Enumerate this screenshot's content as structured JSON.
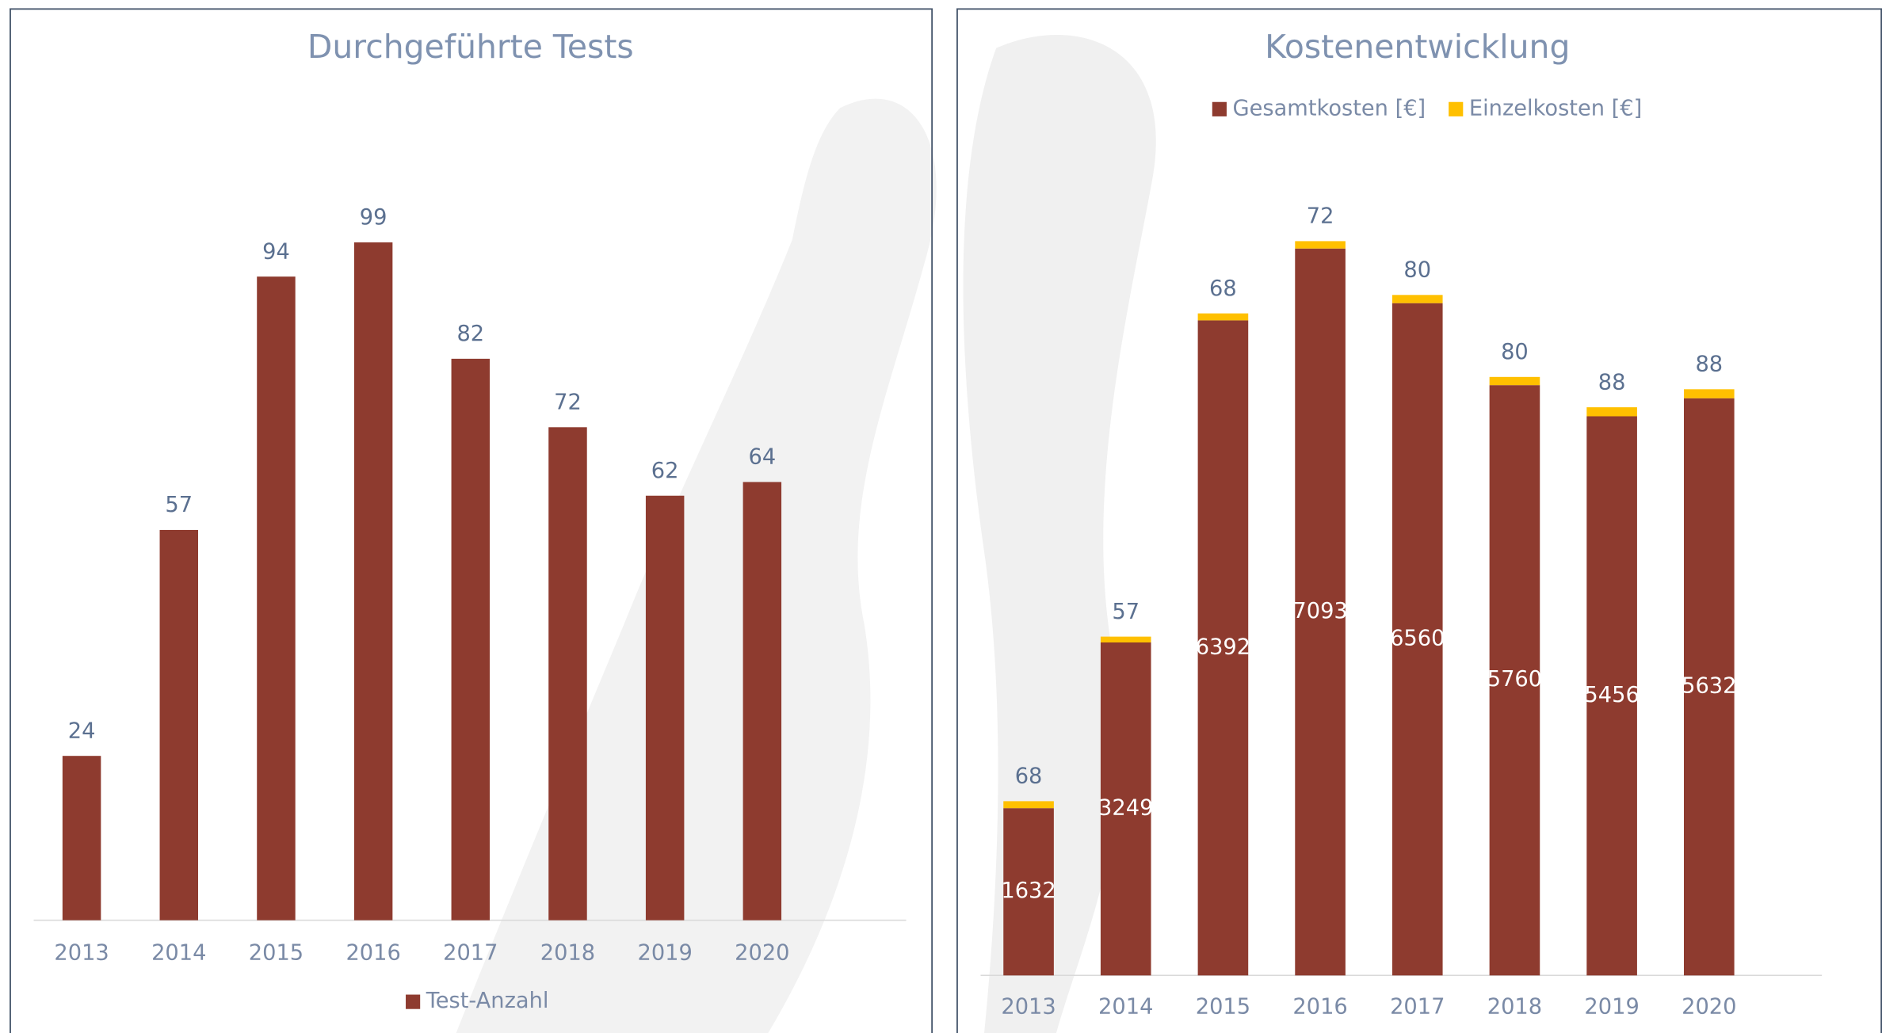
{
  "chart_data": [
    {
      "type": "bar",
      "title": "Durchgeführte Tests",
      "categories": [
        "2013",
        "2014",
        "2015",
        "2016",
        "2017",
        "2018",
        "2019",
        "2020"
      ],
      "series": [
        {
          "name": "Test-Anzahl",
          "color": "#8e3b2f",
          "values": [
            24,
            57,
            94,
            99,
            82,
            72,
            62,
            64
          ]
        }
      ]
    },
    {
      "type": "stacked_bar",
      "title": "Kostenentwicklung",
      "categories": [
        "2013",
        "2014",
        "2015",
        "2016",
        "2017",
        "2018",
        "2019",
        "2020"
      ],
      "series": [
        {
          "name": "Gesamtkosten [€]",
          "color": "#8e3b2f",
          "values": [
            1632,
            3249,
            6392,
            7093,
            6560,
            5760,
            5456,
            5632
          ]
        },
        {
          "name": "Einzelkosten [€]",
          "color": "#ffc000",
          "values": [
            68,
            57,
            68,
            72,
            80,
            80,
            88,
            88
          ]
        }
      ]
    }
  ]
}
